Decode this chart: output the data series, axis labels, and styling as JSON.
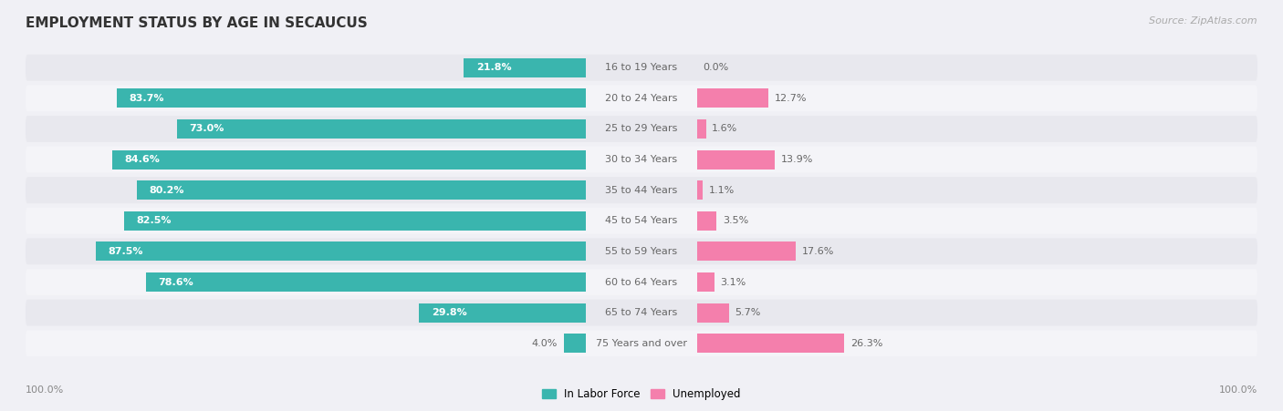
{
  "title": "EMPLOYMENT STATUS BY AGE IN SECAUCUS",
  "source": "Source: ZipAtlas.com",
  "age_groups": [
    "16 to 19 Years",
    "20 to 24 Years",
    "25 to 29 Years",
    "30 to 34 Years",
    "35 to 44 Years",
    "45 to 54 Years",
    "55 to 59 Years",
    "60 to 64 Years",
    "65 to 74 Years",
    "75 Years and over"
  ],
  "in_labor_force": [
    21.8,
    83.7,
    73.0,
    84.6,
    80.2,
    82.5,
    87.5,
    78.6,
    29.8,
    4.0
  ],
  "unemployed": [
    0.0,
    12.7,
    1.6,
    13.9,
    1.1,
    3.5,
    17.6,
    3.1,
    5.7,
    26.3
  ],
  "labor_color": "#3ab5ae",
  "unemployed_color": "#f47fac",
  "row_colors": [
    "#e8e8ee",
    "#f4f4f8"
  ],
  "label_white": "#ffffff",
  "label_dark": "#666666",
  "axis_label_color": "#888888",
  "title_color": "#333333",
  "source_color": "#aaaaaa",
  "background_color": "#f0f0f5"
}
